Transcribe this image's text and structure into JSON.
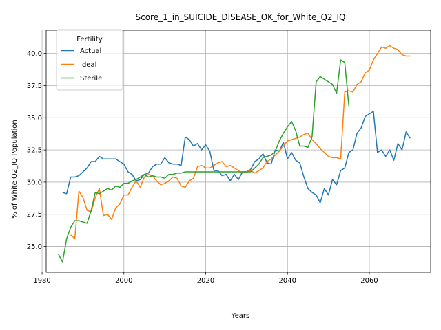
{
  "chart_data": {
    "type": "line",
    "title": "Score_1_in_SUICIDE_DISEASE_OK_for_White_Q2_IQ",
    "xlabel": "Years",
    "ylabel": "% of White Q2_IQ Population",
    "xlim": [
      1981,
      2075
    ],
    "ylim": [
      23.0,
      41.8
    ],
    "xticks": [
      1980,
      2000,
      2020,
      2040,
      2060
    ],
    "yticks": [
      25.0,
      27.5,
      30.0,
      32.5,
      35.0,
      37.5,
      40.0
    ],
    "xtick_labels": [
      "1980",
      "2000",
      "2020",
      "2040",
      "2060"
    ],
    "ytick_labels": [
      "25.0",
      "27.5",
      "30.0",
      "32.5",
      "35.0",
      "37.5",
      "40.0"
    ],
    "grid": true,
    "legend": {
      "title": "Fertility",
      "position": "upper-left"
    },
    "series": [
      {
        "name": "Actual",
        "color": "#1f77b4",
        "x": [
          1985,
          1986,
          1987,
          1988,
          1989,
          1990,
          1991,
          1992,
          1993,
          1994,
          1995,
          1996,
          1997,
          1998,
          1999,
          2000,
          2001,
          2002,
          2003,
          2004,
          2005,
          2006,
          2007,
          2008,
          2009,
          2010,
          2011,
          2012,
          2013,
          2014,
          2015,
          2016,
          2017,
          2018,
          2019,
          2020,
          2021,
          2022,
          2023,
          2024,
          2025,
          2026,
          2027,
          2028,
          2029,
          2030,
          2031,
          2032,
          2033,
          2034,
          2035,
          2036,
          2037,
          2038,
          2039,
          2040,
          2041,
          2042,
          2043,
          2044,
          2045,
          2046,
          2047,
          2048,
          2049,
          2050,
          2051,
          2052,
          2053,
          2054,
          2055,
          2056,
          2057,
          2058,
          2059,
          2060,
          2061,
          2062,
          2063,
          2064,
          2065,
          2066,
          2067,
          2068,
          2069,
          2070
        ],
        "values": [
          29.2,
          29.1,
          30.4,
          30.4,
          30.5,
          30.8,
          31.1,
          31.6,
          31.6,
          32.0,
          31.8,
          31.8,
          31.8,
          31.8,
          31.6,
          31.4,
          30.8,
          30.6,
          30.1,
          30.2,
          30.6,
          30.7,
          31.2,
          31.4,
          31.4,
          31.9,
          31.5,
          31.4,
          31.4,
          31.3,
          33.5,
          33.3,
          32.8,
          33.0,
          32.5,
          32.9,
          32.4,
          30.9,
          30.9,
          30.5,
          30.6,
          30.1,
          30.6,
          30.2,
          30.8,
          30.8,
          31.0,
          31.6,
          31.8,
          32.2,
          31.5,
          31.4,
          32.5,
          32.4,
          33.1,
          31.8,
          32.3,
          31.7,
          31.5,
          30.4,
          29.5,
          29.2,
          29.0,
          28.4,
          29.5,
          29.0,
          30.2,
          29.8,
          30.9,
          31.1,
          32.3,
          32.5,
          33.8,
          34.2,
          35.1,
          35.3,
          35.5,
          32.3,
          32.5,
          32.0,
          32.5,
          31.7,
          33.0,
          32.5,
          33.9,
          33.4
        ]
      },
      {
        "name": "Ideal",
        "color": "#ff7f0e",
        "x": [
          1987,
          1988,
          1989,
          1990,
          1991,
          1992,
          1993,
          1994,
          1995,
          1996,
          1997,
          1998,
          1999,
          2000,
          2001,
          2002,
          2003,
          2004,
          2005,
          2006,
          2007,
          2008,
          2009,
          2010,
          2011,
          2012,
          2013,
          2014,
          2015,
          2016,
          2017,
          2018,
          2019,
          2020,
          2021,
          2022,
          2023,
          2024,
          2025,
          2026,
          2027,
          2028,
          2029,
          2030,
          2031,
          2032,
          2033,
          2034,
          2035,
          2036,
          2037,
          2038,
          2039,
          2040,
          2041,
          2042,
          2043,
          2044,
          2045,
          2046,
          2047,
          2048,
          2049,
          2050,
          2051,
          2052,
          2053,
          2054,
          2055,
          2056,
          2057,
          2058,
          2059,
          2060,
          2061,
          2062,
          2063,
          2064,
          2065,
          2066,
          2067,
          2068,
          2069,
          2070
        ],
        "values": [
          25.9,
          25.6,
          29.3,
          28.8,
          27.8,
          27.7,
          28.8,
          29.5,
          27.4,
          27.5,
          27.1,
          28.0,
          28.3,
          29.0,
          29.0,
          29.6,
          30.1,
          29.6,
          30.4,
          30.6,
          30.5,
          30.1,
          29.8,
          29.9,
          30.1,
          30.4,
          30.3,
          29.7,
          29.6,
          30.1,
          30.3,
          31.2,
          31.3,
          31.1,
          31.1,
          31.3,
          31.5,
          31.6,
          31.2,
          31.3,
          31.1,
          30.9,
          30.7,
          30.8,
          30.9,
          30.7,
          30.9,
          31.1,
          31.6,
          31.8,
          32.1,
          32.4,
          32.8,
          33.2,
          33.3,
          33.4,
          33.5,
          33.7,
          33.8,
          33.3,
          33.0,
          32.6,
          32.3,
          32.0,
          31.9,
          31.9,
          31.8,
          37.0,
          37.1,
          37.0,
          37.6,
          37.8,
          38.5,
          38.7,
          39.5,
          40.0,
          40.5,
          40.4,
          40.6,
          40.4,
          40.3,
          39.9,
          39.8,
          39.8
        ]
      },
      {
        "name": "Sterile",
        "color": "#2ca02c",
        "x": [
          1984,
          1985,
          1986,
          1987,
          1988,
          1989,
          1990,
          1991,
          1992,
          1993,
          1994,
          1995,
          1996,
          1997,
          1998,
          1999,
          2000,
          2001,
          2002,
          2003,
          2004,
          2005,
          2006,
          2007,
          2008,
          2009,
          2010,
          2011,
          2012,
          2013,
          2014,
          2015,
          2016,
          2017,
          2018,
          2019,
          2020,
          2021,
          2022,
          2023,
          2024,
          2025,
          2026,
          2027,
          2028,
          2029,
          2030,
          2031,
          2032,
          2033,
          2034,
          2035,
          2036,
          2037,
          2038,
          2039,
          2040,
          2041,
          2042,
          2043,
          2044,
          2045,
          2046,
          2047,
          2048,
          2049,
          2050,
          2051,
          2052,
          2053,
          2054,
          2055
        ],
        "values": [
          24.4,
          23.8,
          25.6,
          26.5,
          27.0,
          27.0,
          26.9,
          26.8,
          27.8,
          29.2,
          29.1,
          29.3,
          29.5,
          29.4,
          29.7,
          29.6,
          29.9,
          29.9,
          30.1,
          30.2,
          30.4,
          30.6,
          30.4,
          30.5,
          30.4,
          30.4,
          30.3,
          30.6,
          30.6,
          30.7,
          30.7,
          30.8,
          30.8,
          30.8,
          30.8,
          30.8,
          30.8,
          30.8,
          30.8,
          30.8,
          30.8,
          30.8,
          30.8,
          30.8,
          30.8,
          30.8,
          30.8,
          30.8,
          31.1,
          31.4,
          31.9,
          32.0,
          32.1,
          32.4,
          33.2,
          33.8,
          34.3,
          34.7,
          34.0,
          32.8,
          32.8,
          32.7,
          33.5,
          37.8,
          38.2,
          38.0,
          37.8,
          37.6,
          36.9,
          39.5,
          39.3,
          35.9
        ]
      }
    ]
  }
}
